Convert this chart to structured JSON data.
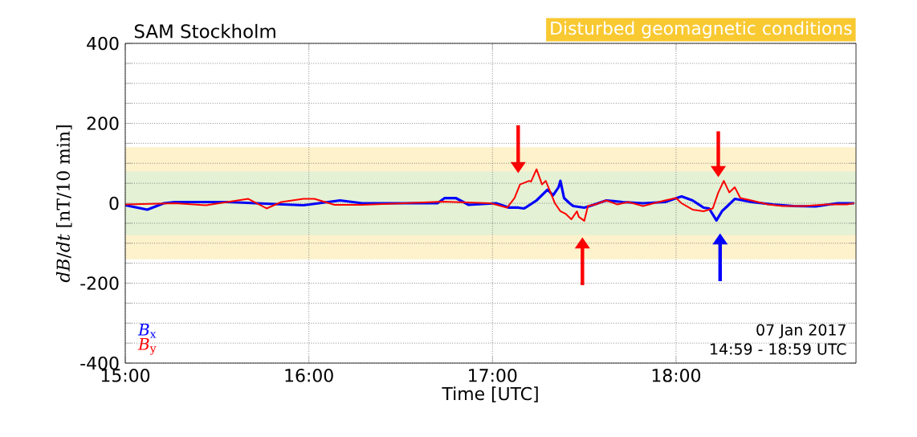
{
  "chart_data": {
    "type": "line",
    "title": "SAM Stockholm",
    "subtitle": "Disturbed geomagnetic conditions",
    "xlabel": "Time [UTC]",
    "ylabel": "*dB*/*dt* [nT/10 min]",
    "annotations": [
      "07 Jan 2017",
      "14:59 - 18:59 UTC"
    ],
    "series": [
      {
        "name": "*B*$_{x}$",
        "color": "#0000ff",
        "x": [
          15.0,
          15.12,
          15.21,
          15.27,
          15.56,
          15.97,
          16.17,
          16.29,
          16.7,
          16.74,
          16.8,
          16.87,
          17.02,
          17.09,
          17.14,
          17.17,
          17.18,
          17.24,
          17.3,
          17.33,
          17.36,
          17.37,
          17.39,
          17.42,
          17.44,
          17.5,
          17.53,
          17.62,
          17.71,
          17.82,
          17.94,
          18.03,
          18.09,
          18.15,
          18.18,
          18.22,
          18.25,
          18.28,
          18.32,
          18.41,
          18.53,
          18.64,
          18.76,
          18.88,
          18.97
        ],
        "values": [
          -5,
          -16,
          0,
          3,
          3,
          -5,
          7,
          0,
          0,
          13,
          13,
          -4,
          0,
          -11,
          -11,
          -13,
          -11,
          7,
          34,
          20,
          40,
          56,
          13,
          0,
          -7,
          -11,
          -7,
          7,
          3,
          0,
          3,
          17,
          7,
          -11,
          -13,
          -43,
          -20,
          -7,
          11,
          3,
          -3,
          -7,
          -8,
          0,
          0
        ]
      },
      {
        "name": "*B*$_{y}$",
        "color": "#ff0000",
        "x": [
          15.0,
          15.27,
          15.44,
          15.67,
          15.77,
          15.85,
          15.97,
          16.03,
          16.14,
          16.29,
          16.73,
          16.99,
          17.08,
          17.12,
          17.15,
          17.2,
          17.21,
          17.24,
          17.27,
          17.29,
          17.31,
          17.34,
          17.37,
          17.4,
          17.43,
          17.46,
          17.47,
          17.5,
          17.52,
          17.56,
          17.62,
          17.68,
          17.74,
          17.82,
          17.94,
          18.0,
          18.03,
          18.09,
          18.15,
          18.2,
          18.23,
          18.26,
          18.29,
          18.32,
          18.35,
          18.41,
          18.5,
          18.58,
          18.7,
          18.82,
          18.93,
          18.97
        ],
        "values": [
          -3,
          0,
          -5,
          11,
          -13,
          3,
          11,
          11,
          -4,
          -4,
          4,
          0,
          -11,
          13,
          47,
          56,
          54,
          85,
          47,
          56,
          34,
          0,
          -20,
          -27,
          -40,
          -20,
          -34,
          -44,
          -7,
          -3,
          7,
          -3,
          3,
          -7,
          7,
          13,
          0,
          -16,
          -20,
          -13,
          27,
          56,
          27,
          40,
          13,
          7,
          -3,
          -7,
          -7,
          -3,
          -3,
          0
        ]
      }
    ],
    "bands": [
      {
        "axis": "y",
        "from": -140,
        "to": 140,
        "color": "#fdf2cc"
      },
      {
        "axis": "y",
        "from": -80,
        "to": 80,
        "color": "#e4f1d5"
      }
    ],
    "xlim": [
      15,
      18.98
    ],
    "ylim": [
      -400,
      400
    ],
    "xticks": [
      {
        "value": 15,
        "label": "15:00"
      },
      {
        "value": 16,
        "label": "16:00"
      },
      {
        "value": 17,
        "label": "17:00"
      },
      {
        "value": 18,
        "label": "18:00"
      }
    ],
    "yticks": [
      -400,
      {
        "value": -350,
        "label": null
      },
      {
        "value": -300,
        "label": null
      },
      {
        "value": -250,
        "label": null
      },
      -200,
      {
        "value": -150,
        "label": null
      },
      {
        "value": -100,
        "label": null
      },
      {
        "value": -50,
        "label": null
      },
      0,
      {
        "value": 50,
        "label": null
      },
      {
        "value": 100,
        "label": null
      },
      {
        "value": 150,
        "label": null
      },
      200,
      {
        "value": 250,
        "label": null
      },
      {
        "value": 300,
        "label": null
      },
      {
        "value": 350,
        "label": null
      },
      400
    ],
    "grid": true,
    "legend": "bottom left",
    "marker": "none",
    "line_style": "solid"
  }
}
